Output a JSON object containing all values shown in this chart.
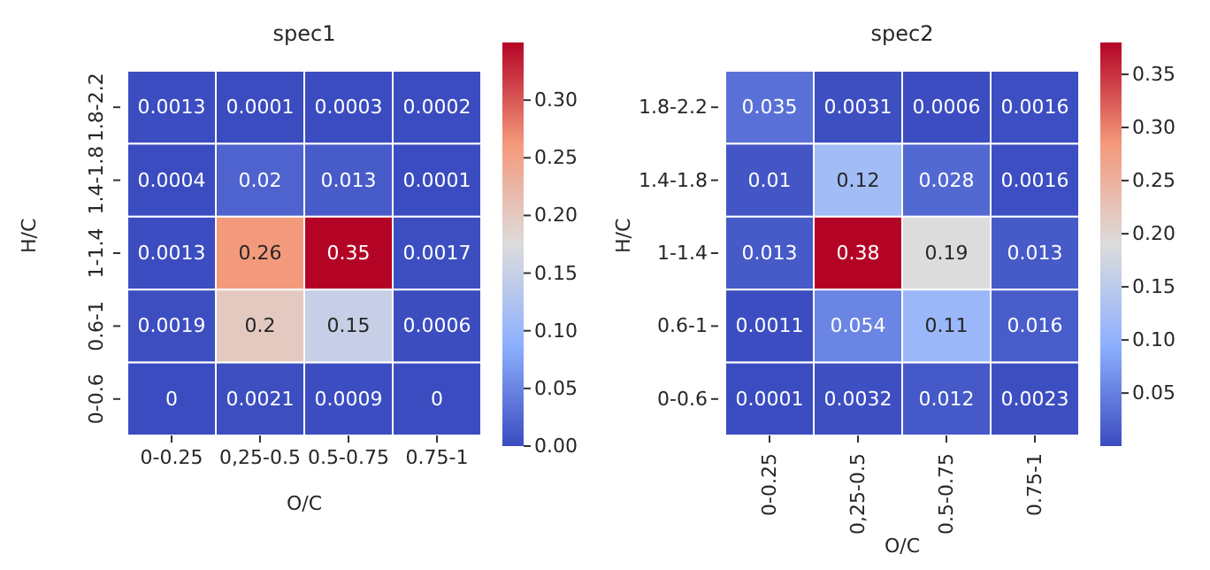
{
  "chart_data": [
    {
      "type": "heatmap",
      "title": "spec1",
      "xlabel": "O/C",
      "ylabel": "H/C",
      "categories": [
        "0-0.25",
        "0,25-0.5",
        "0.5-0.75",
        "0.75-1"
      ],
      "y_categories": [
        "1.8-2.2",
        "1.4-1.8",
        "1-1.4",
        "0.6-1",
        "0-0.6"
      ],
      "cells": [
        [
          0.0013,
          0.0001,
          0.0003,
          0.0002
        ],
        [
          0.0004,
          0.02,
          0.013,
          0.0001
        ],
        [
          0.0013,
          0.26,
          0.35,
          0.0017
        ],
        [
          0.0019,
          0.2,
          0.15,
          0.0006
        ],
        [
          0,
          0.0021,
          0.0009,
          0
        ]
      ],
      "clim": [
        0,
        0.35
      ],
      "cticks": [
        {
          "value": 0,
          "label": "0.00"
        },
        {
          "value": 0.05,
          "label": "0.05"
        },
        {
          "value": 0.1,
          "label": "0.10"
        },
        {
          "value": 0.15,
          "label": "0.15"
        },
        {
          "value": 0.2,
          "label": "0.20"
        },
        {
          "value": 0.25,
          "label": "0.25"
        },
        {
          "value": 0.3,
          "label": "0.30"
        }
      ],
      "data_labels": true
    },
    {
      "type": "heatmap",
      "title": "spec2",
      "xlabel": "O/C",
      "ylabel": "H/C",
      "categories": [
        "0-0.25",
        "0,25-0.5",
        "0.5-0.75",
        "0.75-1"
      ],
      "y_categories": [
        "1.8-2.2",
        "1.4-1.8",
        "1-1.4",
        "0.6-1",
        "0-0.6"
      ],
      "cells": [
        [
          0.035,
          0.0031,
          0.0006,
          0.0016
        ],
        [
          0.01,
          0.12,
          0.028,
          0.0016
        ],
        [
          0.013,
          0.38,
          0.19,
          0.013
        ],
        [
          0.0011,
          0.054,
          0.11,
          0.016
        ],
        [
          0.0001,
          0.0032,
          0.012,
          0.0023
        ]
      ],
      "clim": [
        0.0001,
        0.38
      ],
      "cticks": [
        {
          "value": 0.05,
          "label": "0.05"
        },
        {
          "value": 0.1,
          "label": "0.10"
        },
        {
          "value": 0.15,
          "label": "0.15"
        },
        {
          "value": 0.2,
          "label": "0.20"
        },
        {
          "value": 0.25,
          "label": "0.25"
        },
        {
          "value": 0.3,
          "label": "0.30"
        },
        {
          "value": 0.35,
          "label": "0.35"
        }
      ],
      "data_labels": true
    }
  ]
}
